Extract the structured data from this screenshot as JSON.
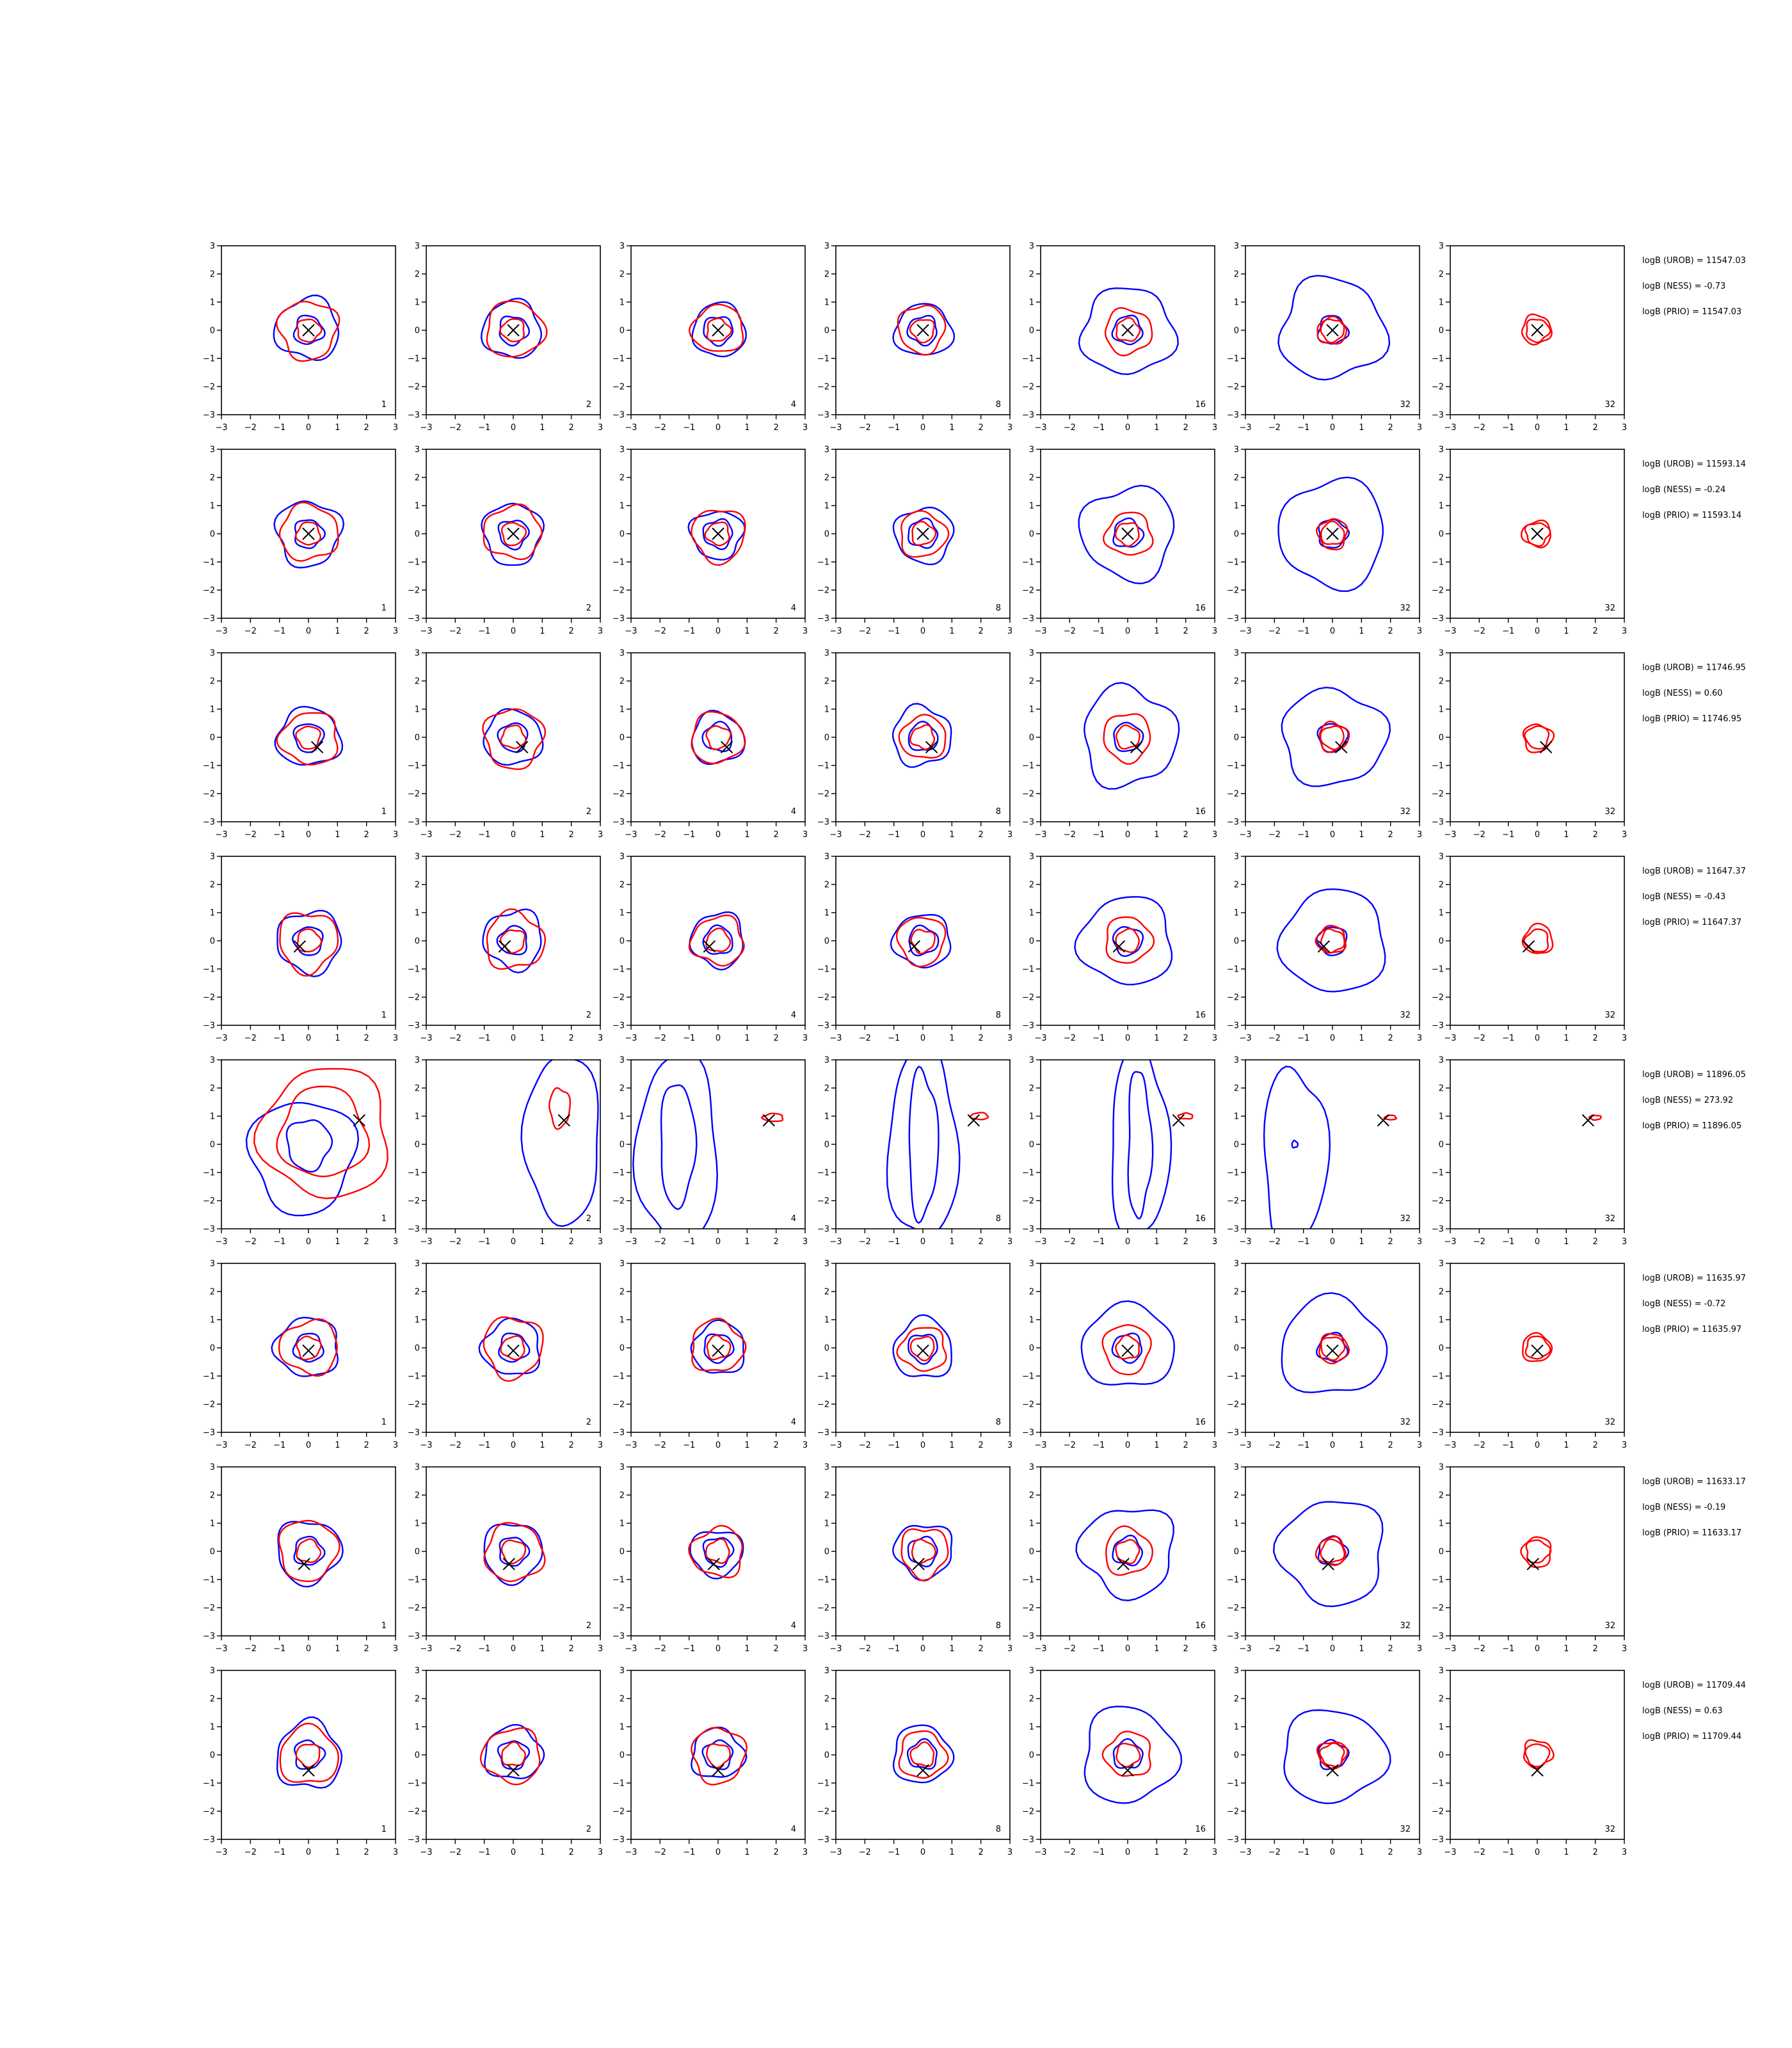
{
  "figure": {
    "panels_per_row": 7,
    "panel_labels": [
      "1",
      "2",
      "4",
      "8",
      "16",
      "32",
      "32"
    ],
    "axis": {
      "xlim": [
        -3,
        3
      ],
      "ylim": [
        -3,
        3
      ],
      "ticks": [
        "−3",
        "−2",
        "−1",
        "0",
        "1",
        "2",
        "3"
      ]
    },
    "colors": {
      "line_blue": "#0000ff",
      "line_red": "#ff0000",
      "marker": "#000000",
      "axis": "#000000"
    }
  },
  "rows": [
    {
      "stats": [
        "logB (UROB) = 11547.03",
        "logB (NESS) = -0.73",
        "logB (PRIO) = 11547.03"
      ],
      "marker": [
        0.0,
        0.0
      ]
    },
    {
      "stats": [
        "logB (UROB) = 11593.14",
        "logB (NESS) = -0.24",
        "logB (PRIO) = 11593.14"
      ],
      "marker": [
        0.0,
        0.0
      ]
    },
    {
      "stats": [
        "logB (UROB) = 11746.95",
        "logB (NESS) = 0.60",
        "logB (PRIO) = 11746.95"
      ],
      "marker": [
        0.3,
        -0.35
      ]
    },
    {
      "stats": [
        "logB (UROB) = 11647.37",
        "logB (NESS) = -0.43",
        "logB (PRIO) = 11647.37"
      ],
      "marker": [
        -0.3,
        -0.2
      ]
    },
    {
      "stats": [
        "logB (UROB) = 11896.05",
        "logB (NESS) = 273.92",
        "logB (PRIO) = 11896.05"
      ],
      "marker": [
        1.75,
        0.85
      ]
    },
    {
      "stats": [
        "logB (UROB) = 11635.97",
        "logB (NESS) = -0.72",
        "logB (PRIO) = 11635.97"
      ],
      "marker": [
        0.0,
        -0.1
      ]
    },
    {
      "stats": [
        "logB (UROB) = 11633.17",
        "logB (NESS) = -0.19",
        "logB (PRIO) = 11633.17"
      ],
      "marker": [
        -0.15,
        -0.45
      ]
    },
    {
      "stats": [
        "logB (UROB) = 11709.44",
        "logB (NESS) = 0.63",
        "logB (PRIO) = 11709.44"
      ],
      "marker": [
        0.0,
        -0.55
      ]
    }
  ],
  "chart_data": {
    "type": "contour",
    "grid": {
      "rows": 8,
      "cols": 7
    },
    "xlim": [
      -3,
      3
    ],
    "ylim": [
      -3,
      3
    ],
    "grid_lines": false,
    "legend": "none",
    "series": [
      {
        "color": "blue",
        "inner_radius": 0.5,
        "outer_radius": [
          1.1,
          1.0,
          0.9,
          1.0,
          1.6,
          1.8,
          0
        ]
      },
      {
        "color": "red",
        "inner_radius": 0.4,
        "outer_radius": [
          1.0,
          1.0,
          0.9,
          0.8,
          0.8,
          0.5,
          0.5
        ]
      }
    ],
    "special_row": {
      "index": 4,
      "blue": [
        {
          "panel": 0,
          "cx": -0.2,
          "cy": -0.4,
          "rx": 1.8,
          "ry": 2.0
        },
        {
          "panel": 0,
          "cx": 0.0,
          "cy": 0.0,
          "rx": 0.75,
          "ry": 0.9
        },
        {
          "panel": 1,
          "cx": 1.7,
          "cy": 0.2,
          "rx": 1.3,
          "ry": 3.0
        },
        {
          "panel": 2,
          "cx": -1.4,
          "cy": -0.2,
          "rx": 1.4,
          "ry": 3.4
        },
        {
          "panel": 2,
          "cx": -1.4,
          "cy": 0.0,
          "rx": 0.6,
          "ry": 2.2
        },
        {
          "panel": 3,
          "cx": 0.0,
          "cy": 0.0,
          "rx": 1.2,
          "ry": 3.4
        },
        {
          "panel": 3,
          "cx": 0.0,
          "cy": 0.0,
          "rx": 0.5,
          "ry": 2.6
        },
        {
          "panel": 4,
          "cx": 0.4,
          "cy": 0.0,
          "rx": 1.0,
          "ry": 3.4
        },
        {
          "panel": 4,
          "cx": 0.4,
          "cy": 0.0,
          "rx": 0.4,
          "ry": 2.6
        },
        {
          "panel": 5,
          "cx": -1.3,
          "cy": -0.5,
          "rx": 1.1,
          "ry": 3.2
        },
        {
          "panel": 5,
          "cx": -1.3,
          "cy": 0.0,
          "rx": 0.1,
          "ry": 0.12
        }
      ],
      "red": [
        {
          "panel": 0,
          "cx": 0.6,
          "cy": 0.4,
          "rx": 2.2,
          "ry": 2.3
        },
        {
          "panel": 0,
          "cx": 0.5,
          "cy": 0.4,
          "rx": 1.5,
          "ry": 1.6
        },
        {
          "panel": 1,
          "cx": 1.6,
          "cy": 1.3,
          "rx": 0.35,
          "ry": 0.7
        },
        {
          "panel": 2,
          "cx": 1.9,
          "cy": 0.95,
          "rx": 0.35,
          "ry": 0.14
        },
        {
          "panel": 3,
          "cx": 1.95,
          "cy": 1.0,
          "rx": 0.3,
          "ry": 0.12
        },
        {
          "panel": 4,
          "cx": 2.0,
          "cy": 1.0,
          "rx": 0.25,
          "ry": 0.1
        },
        {
          "panel": 5,
          "cx": 2.0,
          "cy": 0.95,
          "rx": 0.2,
          "ry": 0.08
        },
        {
          "panel": 6,
          "cx": 2.0,
          "cy": 0.95,
          "rx": 0.2,
          "ry": 0.08
        }
      ]
    }
  }
}
